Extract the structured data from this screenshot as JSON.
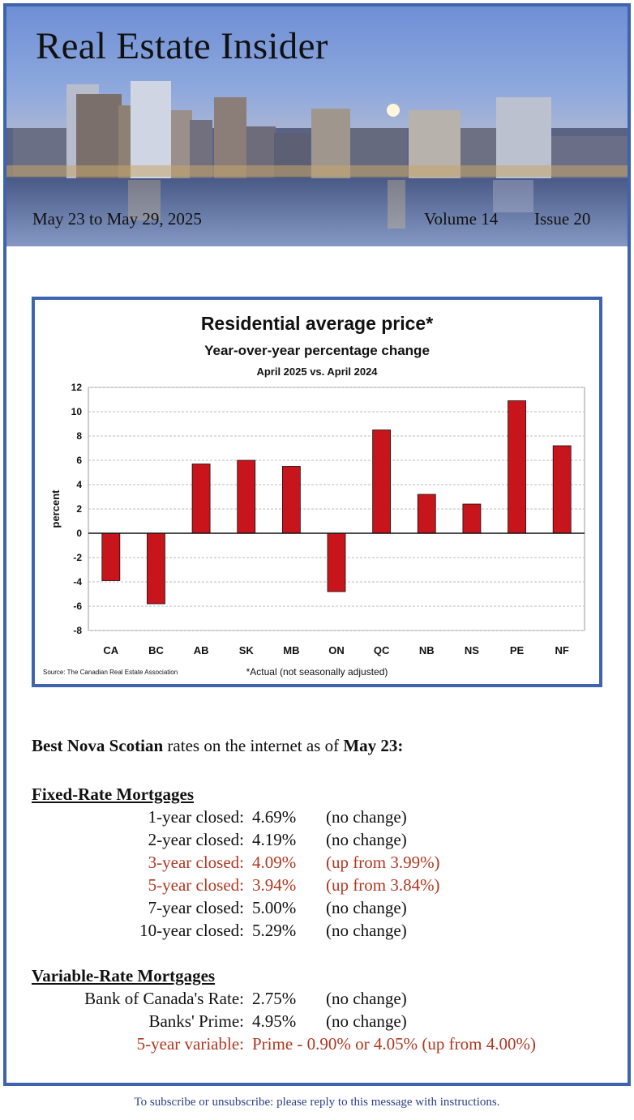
{
  "header": {
    "title": "Real Estate Insider",
    "date_range": "May 23 to May 29, 2025",
    "volume": "Volume 14",
    "issue": "Issue 20"
  },
  "chart_data": {
    "type": "bar",
    "title": "Residential average price*",
    "subtitle": "Year-over-year percentage change",
    "subtitle2": "April 2025 vs. April 2024",
    "xlabel": "",
    "ylabel": "percent",
    "categories": [
      "CA",
      "BC",
      "AB",
      "SK",
      "MB",
      "ON",
      "QC",
      "NB",
      "NS",
      "PE",
      "NF"
    ],
    "values": [
      -3.9,
      -5.8,
      5.7,
      6.0,
      5.5,
      -4.8,
      8.5,
      3.2,
      2.4,
      10.9,
      7.2
    ],
    "ylim": [
      -8,
      12
    ],
    "yticks": [
      12,
      10,
      8,
      6,
      4,
      2,
      0,
      -2,
      -4,
      -6,
      -8
    ],
    "grid": true,
    "bar_color": "#c8151b",
    "source": "Source: The Canadian Real Estate Association",
    "footnote": "*Actual (not seasonally adjusted)"
  },
  "rates": {
    "intro_bold1": "Best Nova Scotian",
    "intro_mid": " rates on the internet as of ",
    "intro_bold2": "May 23:",
    "fixed": {
      "heading": "Fixed-Rate Mortgages",
      "rows": [
        {
          "label": "1-year closed:",
          "rate": "4.69%",
          "change": "(no change)"
        },
        {
          "label": "2-year closed:",
          "rate": "4.19%",
          "change": "(no change)"
        },
        {
          "label": "3-year closed:",
          "rate": "4.09%",
          "change": "(up from 3.99%)"
        },
        {
          "label": "5-year closed:",
          "rate": "3.94%",
          "change": "(up from 3.84%)"
        },
        {
          "label": "7-year closed:",
          "rate": "5.00%",
          "change": "(no change)"
        },
        {
          "label": "10-year closed:",
          "rate": "5.29%",
          "change": "(no change)"
        }
      ]
    },
    "variable": {
      "heading": "Variable-Rate Mortgages",
      "rows": [
        {
          "label": "Bank of Canada's Rate:",
          "rate": "2.75%",
          "change": "(no change)"
        },
        {
          "label": "Banks' Prime:",
          "rate": "4.95%",
          "change": "(no change)"
        },
        {
          "label": "5-year variable:",
          "rate": "Prime - 0.90% or 4.05% (up from 4.00%)",
          "change": ""
        }
      ]
    }
  },
  "footer": "To subscribe or unsubscribe: please reply to this message with instructions.",
  "colors": {
    "frame": "#3f64ae",
    "highlight": "#b0371f",
    "footer": "#2c3f86"
  }
}
